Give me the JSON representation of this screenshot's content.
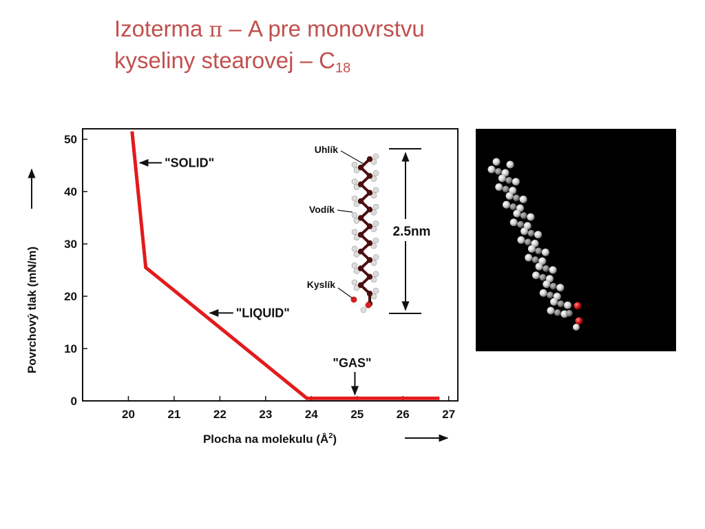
{
  "title": {
    "line1_text": "Izoterma ",
    "line1_symbol": "π",
    "line1_rest": " – A pre monovrstvu",
    "line2_text": "kyseliny stearovej – C",
    "line2_sub": "18"
  },
  "colors": {
    "title": "#c0504d",
    "curve": "#e31a1c",
    "carbon": "#4a0f0f",
    "hydrogen": "#dcdcdc",
    "oxygen": "#d42020"
  },
  "chart_data": {
    "type": "line",
    "title": "",
    "xlabel": "Plocha na molekulu (Å",
    "xlabel_sup": "2",
    "xlabel_tail": ")",
    "ylabel": "Povrchový tlak (mN/m)",
    "xlim": [
      19.0,
      27.2
    ],
    "ylim": [
      0,
      52
    ],
    "xticks": [
      20,
      21,
      22,
      23,
      24,
      25,
      26,
      27
    ],
    "yticks": [
      0,
      10,
      20,
      30,
      40,
      50
    ],
    "grid": false,
    "series": [
      {
        "x": [
          20.08,
          20.38,
          23.9,
          26.8
        ],
        "y": [
          51.5,
          25.5,
          0.5,
          0.5
        ]
      }
    ],
    "annotations": [
      {
        "text": "\"SOLID\"",
        "x": 20.22,
        "y": 45.5
      },
      {
        "text": "\"LIQUID\"",
        "x": 21.75,
        "y": 16.8
      },
      {
        "text": "\"GAS\"",
        "x": 24.95,
        "y": 0.8
      }
    ],
    "inset": {
      "labels": [
        "Uhlík",
        "Vodík",
        "Kyslík"
      ],
      "dimension": "2.5nm"
    }
  }
}
